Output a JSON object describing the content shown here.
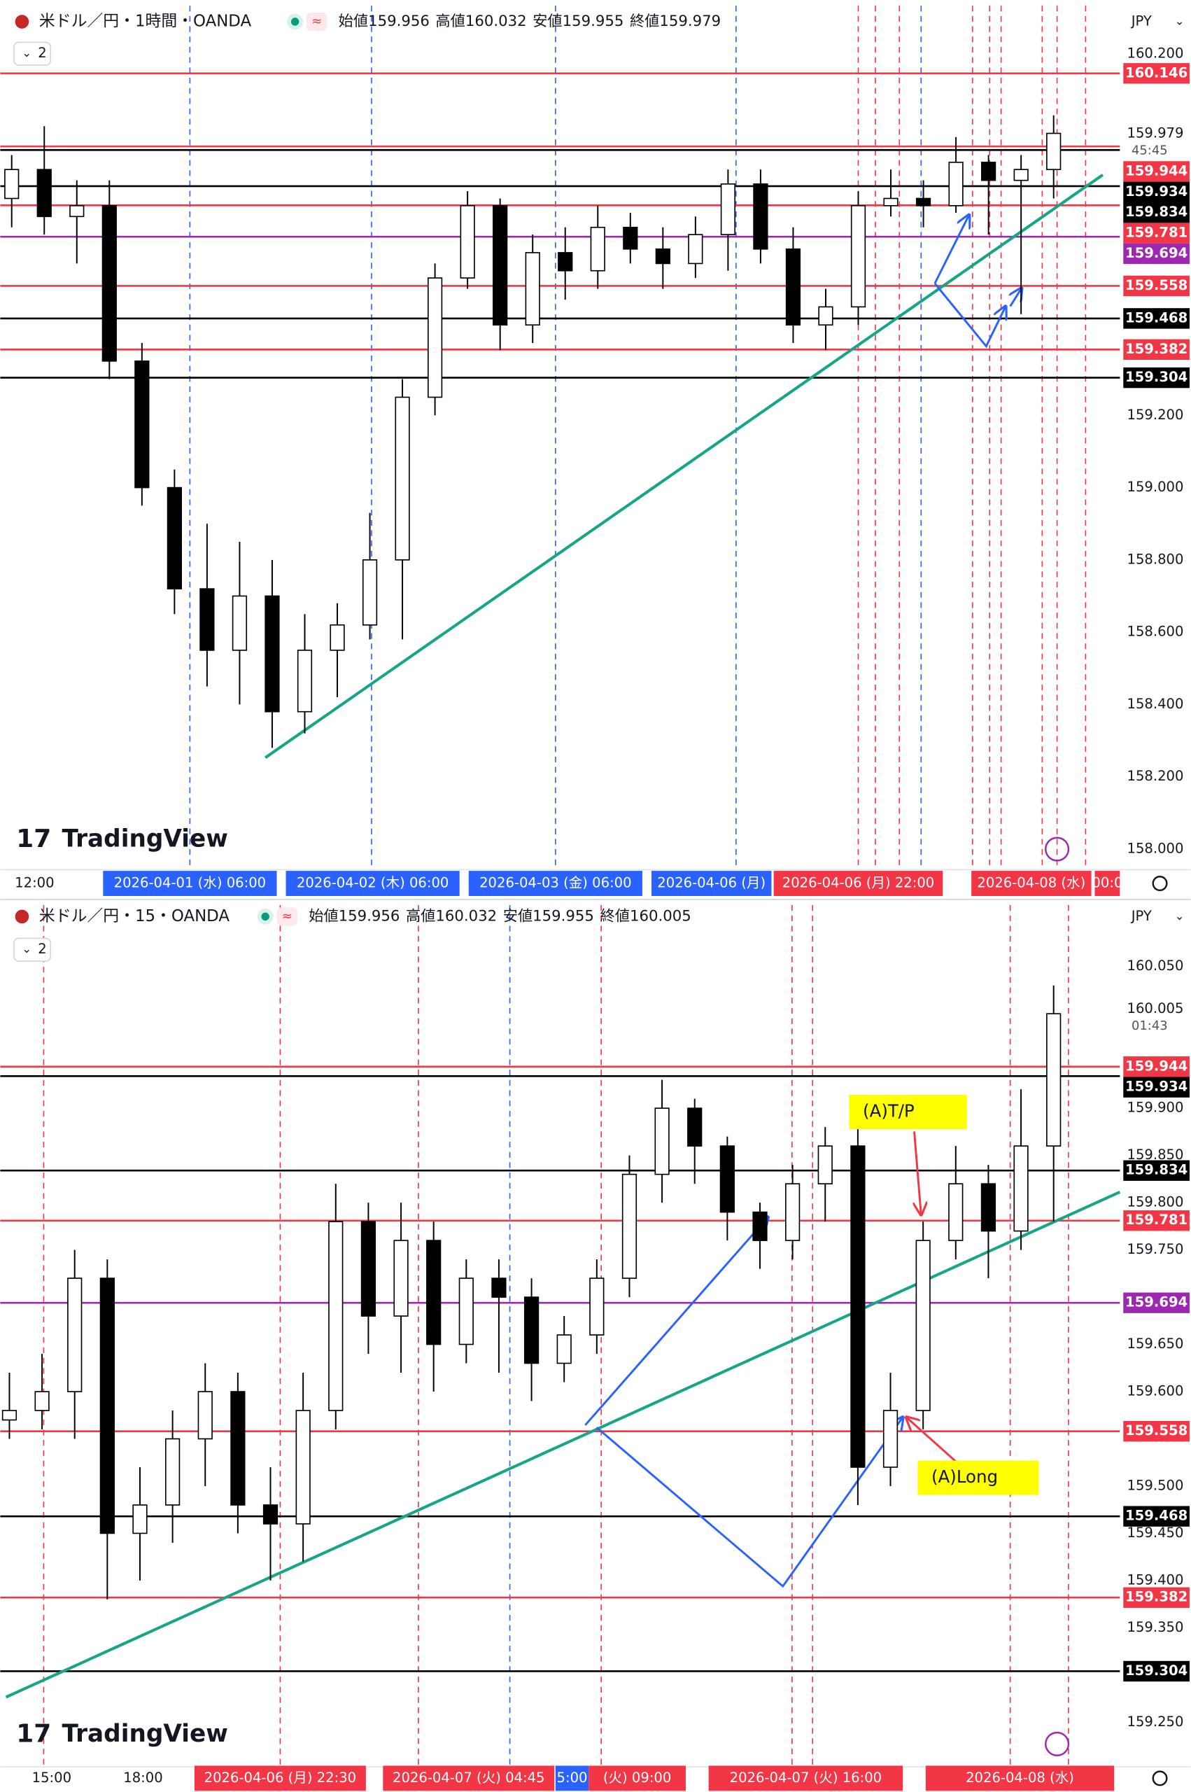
{
  "chart_data": [
    {
      "type": "candlestick",
      "title": "米ドル／円・1時間・OANDA",
      "open_label": "始値159.956",
      "high_label": "高値160.032",
      "low_label": "安値159.955",
      "close_label": "終値159.979",
      "currency": "JPY",
      "indicator_count": "2",
      "brand": "TradingView",
      "up_color": "#ffffff",
      "down_color": "#000000",
      "ylim": [
        157.946,
        160.349
      ],
      "yticks": [
        {
          "value": 160.2,
          "label": "160.200"
        },
        {
          "value": 159.2,
          "label": "159.200"
        },
        {
          "value": 159,
          "label": "159.000"
        },
        {
          "value": 158.8,
          "label": "158.800"
        },
        {
          "value": 158.6,
          "label": "158.600"
        },
        {
          "value": 158.4,
          "label": "158.400"
        },
        {
          "value": 158.2,
          "label": "158.200"
        },
        {
          "value": 158,
          "label": "158.000"
        }
      ],
      "current_price": {
        "value": 159.979,
        "label": "159.979",
        "countdown": "45:45"
      },
      "levels": [
        {
          "value": 160.146,
          "label": "160.146",
          "color": "#f23645"
        },
        {
          "value": 159.944,
          "label": "159.944",
          "color": "#f23645"
        },
        {
          "value": 159.934,
          "label": "159.934",
          "color": "#000000"
        },
        {
          "value": 159.834,
          "label": "159.834",
          "color": "#000000"
        },
        {
          "value": 159.781,
          "label": "159.781",
          "color": "#f23645"
        },
        {
          "value": 159.694,
          "label": "159.694",
          "color": "#9c27b0"
        },
        {
          "value": 159.558,
          "label": "159.558",
          "color": "#f23645"
        },
        {
          "value": 159.468,
          "label": "159.468",
          "color": "#000000"
        },
        {
          "value": 159.382,
          "label": "159.382",
          "color": "#f23645"
        },
        {
          "value": 159.304,
          "label": "159.304",
          "color": "#000000"
        }
      ],
      "time_labels": [
        {
          "label": "12:00"
        },
        {
          "label": "2026-04-01 (水)  06:00",
          "color": "#2962ff"
        },
        {
          "label": "2026-04-02 (木)  06:00",
          "color": "#2962ff"
        },
        {
          "label": "2026-04-03 (金)  06:00",
          "color": "#2962ff"
        },
        {
          "label": "2026-04-06 (月)",
          "color": "#2962ff"
        },
        {
          "label": "2026-04-06 (月)  22:00",
          "color": "#f23645"
        },
        {
          "label": "2026-04-08 (水)",
          "color": "#f23645"
        },
        {
          "label": "00:0",
          "color": "#f23645"
        }
      ],
      "open": [
        159.8,
        159.88,
        159.75,
        159.78,
        159.35,
        159.0,
        158.72,
        158.55,
        158.7,
        158.38,
        158.55,
        158.62,
        158.8,
        159.25,
        159.58,
        159.78,
        159.45,
        159.65,
        159.6,
        159.72,
        159.66,
        159.62,
        159.7,
        159.84,
        159.66,
        159.45,
        159.5,
        159.78,
        159.8,
        159.78,
        159.9,
        159.85,
        159.88
      ],
      "high": [
        159.92,
        160.0,
        159.85,
        159.85,
        159.4,
        159.05,
        158.9,
        158.85,
        158.8,
        158.65,
        158.68,
        158.93,
        159.3,
        159.62,
        159.82,
        159.8,
        159.7,
        159.72,
        159.78,
        159.76,
        159.72,
        159.75,
        159.88,
        159.88,
        159.72,
        159.55,
        159.82,
        159.88,
        159.85,
        159.97,
        159.92,
        159.92,
        160.03
      ],
      "low": [
        159.72,
        159.7,
        159.62,
        159.3,
        158.95,
        158.65,
        158.45,
        158.4,
        158.28,
        158.32,
        158.42,
        158.58,
        158.58,
        159.2,
        159.55,
        159.38,
        159.4,
        159.52,
        159.55,
        159.62,
        159.55,
        159.58,
        159.6,
        159.62,
        159.4,
        159.38,
        159.45,
        159.75,
        159.72,
        159.76,
        159.7,
        159.48,
        159.8
      ],
      "close": [
        159.88,
        159.75,
        159.78,
        159.35,
        159.0,
        158.72,
        158.55,
        158.7,
        158.38,
        158.55,
        158.62,
        158.8,
        159.25,
        159.58,
        159.78,
        159.45,
        159.65,
        159.6,
        159.72,
        159.66,
        159.62,
        159.7,
        159.84,
        159.66,
        159.45,
        159.5,
        159.78,
        159.8,
        159.78,
        159.9,
        159.85,
        159.88,
        159.98
      ]
    },
    {
      "type": "candlestick",
      "title": "米ドル／円・15・OANDA",
      "open_label": "始値159.956",
      "high_label": "高値160.032",
      "low_label": "安値159.955",
      "close_label": "終値160.005",
      "currency": "JPY",
      "indicator_count": "2",
      "brand": "TradingView",
      "up_color": "#ffffff",
      "down_color": "#000000",
      "ylim": [
        159.204,
        160.121
      ],
      "yticks": [
        {
          "value": 160.05,
          "label": "160.050"
        },
        {
          "value": 159.9,
          "label": "159.900"
        },
        {
          "value": 159.85,
          "label": "159.850"
        },
        {
          "value": 159.8,
          "label": "159.800"
        },
        {
          "value": 159.75,
          "label": "159.750"
        },
        {
          "value": 159.65,
          "label": "159.650"
        },
        {
          "value": 159.6,
          "label": "159.600"
        },
        {
          "value": 159.5,
          "label": "159.500"
        },
        {
          "value": 159.45,
          "label": "159.450"
        },
        {
          "value": 159.4,
          "label": "159.400"
        },
        {
          "value": 159.35,
          "label": "159.350"
        },
        {
          "value": 159.25,
          "label": "159.250"
        }
      ],
      "current_price": {
        "value": 160.005,
        "label": "160.005",
        "countdown": "01:43"
      },
      "levels": [
        {
          "value": 159.944,
          "label": "159.944",
          "color": "#f23645"
        },
        {
          "value": 159.934,
          "label": "159.934",
          "color": "#000000"
        },
        {
          "value": 159.834,
          "label": "159.834",
          "color": "#000000"
        },
        {
          "value": 159.781,
          "label": "159.781",
          "color": "#f23645"
        },
        {
          "value": 159.694,
          "label": "159.694",
          "color": "#9c27b0"
        },
        {
          "value": 159.558,
          "label": "159.558",
          "color": "#f23645"
        },
        {
          "value": 159.468,
          "label": "159.468",
          "color": "#000000"
        },
        {
          "value": 159.382,
          "label": "159.382",
          "color": "#f23645"
        },
        {
          "value": 159.304,
          "label": "159.304",
          "color": "#000000"
        }
      ],
      "time_labels": [
        {
          "label": "15:00"
        },
        {
          "label": "18:00"
        },
        {
          "label": "2026-04-06 (月)  22:30",
          "color": "#f23645"
        },
        {
          "label": "2026-04-07 (火)  04:45",
          "color": "#f23645"
        },
        {
          "label": "5:00",
          "color": "#2962ff"
        },
        {
          "label": "(火)  09:00",
          "color": "#f23645"
        },
        {
          "label": "2026-04-07 (火)  16:00",
          "color": "#f23645"
        },
        {
          "label": "2026-04-08 (水)",
          "color": "#f23645"
        }
      ],
      "annotations": [
        {
          "text": "(A)T/P"
        },
        {
          "text": "(A)Long"
        }
      ],
      "open": [
        159.57,
        159.58,
        159.6,
        159.72,
        159.45,
        159.48,
        159.55,
        159.6,
        159.48,
        159.46,
        159.58,
        159.78,
        159.68,
        159.76,
        159.65,
        159.72,
        159.7,
        159.63,
        159.66,
        159.72,
        159.83,
        159.9,
        159.86,
        159.79,
        159.76,
        159.82,
        159.86,
        159.52,
        159.58,
        159.76,
        159.82,
        159.77,
        159.86
      ],
      "high": [
        159.62,
        159.64,
        159.75,
        159.74,
        159.52,
        159.58,
        159.63,
        159.62,
        159.52,
        159.62,
        159.82,
        159.8,
        159.8,
        159.78,
        159.74,
        159.74,
        159.72,
        159.68,
        159.74,
        159.85,
        159.93,
        159.91,
        159.87,
        159.8,
        159.84,
        159.88,
        159.88,
        159.62,
        159.78,
        159.86,
        159.84,
        159.92,
        160.03
      ],
      "low": [
        159.55,
        159.56,
        159.55,
        159.38,
        159.4,
        159.44,
        159.5,
        159.45,
        159.4,
        159.42,
        159.56,
        159.64,
        159.62,
        159.6,
        159.63,
        159.62,
        159.59,
        159.61,
        159.64,
        159.7,
        159.8,
        159.82,
        159.76,
        159.73,
        159.74,
        159.78,
        159.48,
        159.5,
        159.56,
        159.74,
        159.72,
        159.75,
        159.78
      ],
      "close": [
        159.58,
        159.6,
        159.72,
        159.45,
        159.48,
        159.55,
        159.6,
        159.48,
        159.46,
        159.58,
        159.78,
        159.68,
        159.76,
        159.65,
        159.72,
        159.7,
        159.63,
        159.66,
        159.72,
        159.83,
        159.9,
        159.86,
        159.79,
        159.76,
        159.82,
        159.86,
        159.52,
        159.58,
        159.76,
        159.82,
        159.77,
        159.86,
        160.0
      ]
    }
  ]
}
